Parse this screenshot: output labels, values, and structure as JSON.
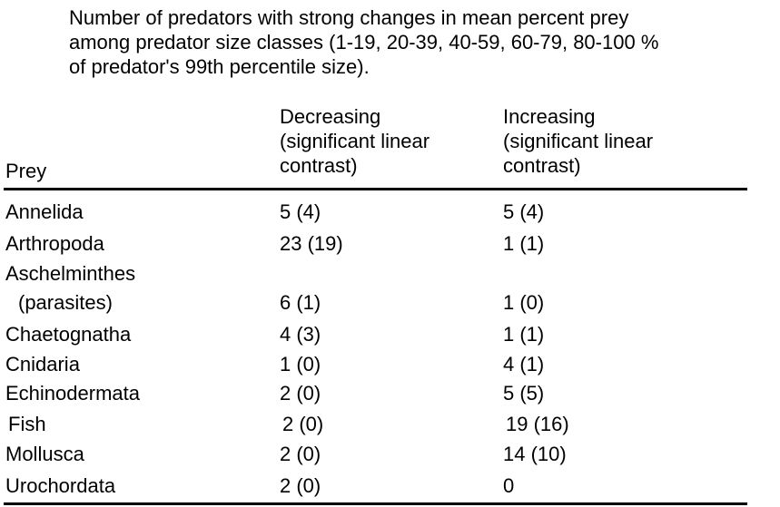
{
  "caption": "Number of predators with strong changes in mean percent prey\namong predator size classes (1-19, 20-39, 40-59, 60-79, 80-100 %\nof predator's 99th percentile size).",
  "table": {
    "headers": {
      "prey": "Prey",
      "decreasing": "Decreasing\n(significant linear\ncontrast)",
      "increasing": "Increasing\n(significant linear\ncontrast)"
    },
    "rows": [
      {
        "prey": "Annelida",
        "decreasing": "5 (4)",
        "increasing": "5 (4)"
      },
      {
        "prey": "Arthropoda",
        "decreasing": "23 (19)",
        "increasing": "1 (1)"
      },
      {
        "prey": "Aschelminthes",
        "decreasing": "",
        "increasing": ""
      },
      {
        "prey": "(parasites)",
        "decreasing": "6 (1)",
        "increasing": "1 (0)"
      },
      {
        "prey": "Chaetognatha",
        "decreasing": "4 (3)",
        "increasing": "1 (1)"
      },
      {
        "prey": "Cnidaria",
        "decreasing": "1 (0)",
        "increasing": "4 (1)"
      },
      {
        "prey": "Echinodermata",
        "decreasing": "2 (0)",
        "increasing": "5 (5)"
      },
      {
        "prey": "Fish",
        "decreasing": "2 (0)",
        "increasing": "19 (16)"
      },
      {
        "prey": "Mollusca",
        "decreasing": "2 (0)",
        "increasing": "14 (10)"
      },
      {
        "prey": "Urochordata",
        "decreasing": "2 (0)",
        "increasing": "0"
      }
    ]
  }
}
